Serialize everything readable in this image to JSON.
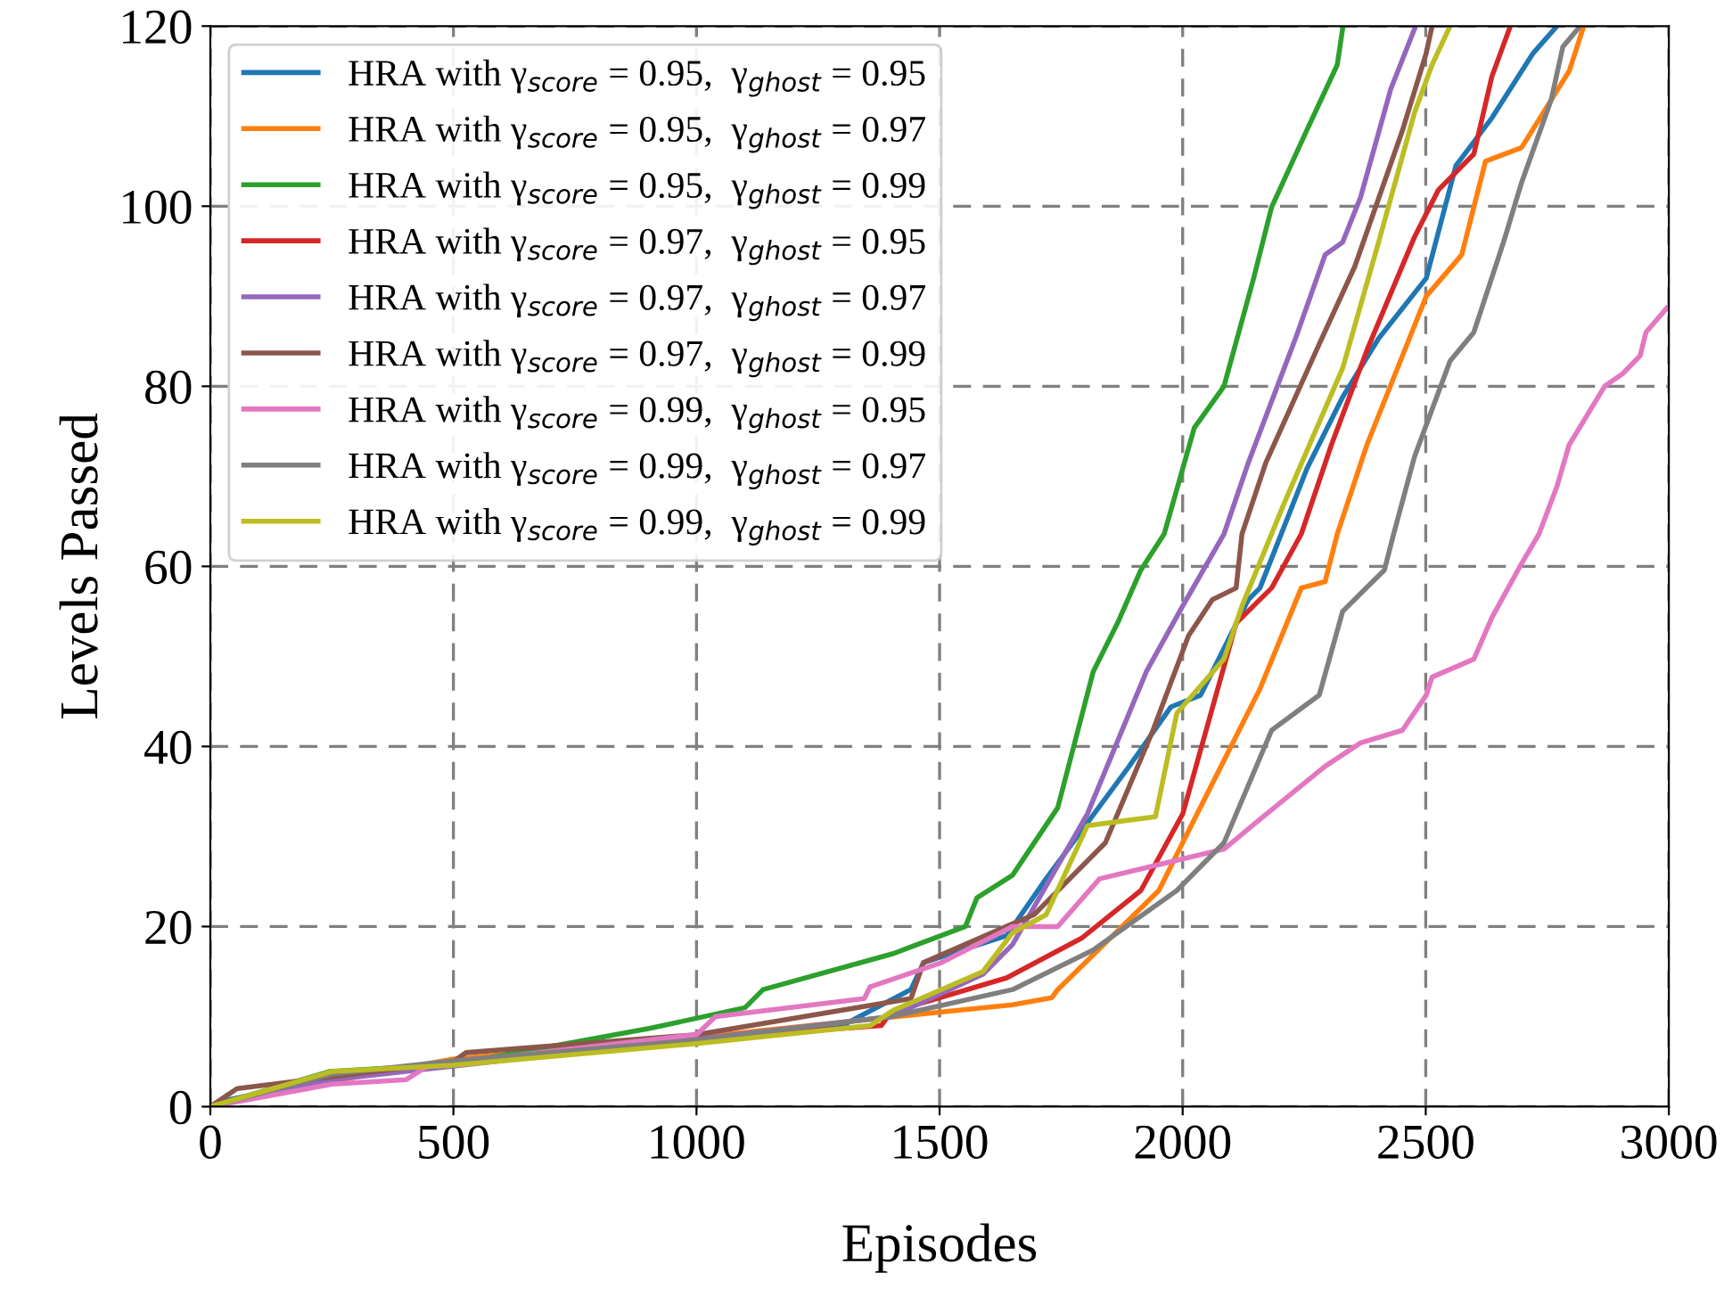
{
  "chart_data": {
    "type": "line",
    "xlabel": "Episodes",
    "ylabel": "Levels Passed",
    "xlim": [
      0,
      3000
    ],
    "ylim": [
      0,
      120
    ],
    "xticks": [
      0,
      500,
      1000,
      1500,
      2000,
      2500,
      3000
    ],
    "yticks": [
      0,
      20,
      40,
      60,
      80,
      100,
      120
    ],
    "grid": true,
    "legend": "top left",
    "line_style": "solid",
    "marker": "none",
    "series": [
      {
        "name": "HRA with γ$_{score}$ = 0.95,  γ$_{ghost}$ = 0.95",
        "color": "#1f77b4",
        "x": [
          0,
          40,
          250,
          500,
          1000,
          1300,
          1441,
          1467,
          1638,
          1719,
          1890,
          1976,
          2037,
          2135,
          2159,
          2256,
          2329,
          2403,
          2501,
          2562,
          2636,
          2721,
          2770
        ],
        "values": [
          0,
          0.8,
          3.2,
          4.8,
          7.5,
          9,
          13,
          16,
          19,
          25.3,
          37.8,
          44.4,
          45.7,
          56.3,
          57.6,
          70.9,
          78.8,
          85.3,
          92,
          104.5,
          109.8,
          117,
          120
        ]
      },
      {
        "name": "HRA with γ$_{score}$ = 0.95,  γ$_{ghost}$ = 0.97",
        "color": "#ff7f0e",
        "x": [
          0,
          80,
          250,
          500,
          1000,
          1500,
          1650,
          1731,
          1743,
          1951,
          2024,
          2159,
          2244,
          2293,
          2318,
          2379,
          2501,
          2574,
          2623,
          2697,
          2795,
          2825
        ],
        "values": [
          0,
          1.2,
          2.8,
          5.3,
          7.7,
          10.5,
          11.3,
          12.1,
          13,
          24,
          31.9,
          46.4,
          57.6,
          58.3,
          63.6,
          73.5,
          90,
          94.6,
          105,
          106.5,
          115,
          120
        ]
      },
      {
        "name": "HRA with γ$_{score}$ = 0.95,  γ$_{ghost}$ = 0.99",
        "color": "#2ca02c",
        "x": [
          0,
          245,
          500,
          905,
          1100,
          1137,
          1405,
          1553,
          1577,
          1650,
          1743,
          1816,
          1866,
          1914,
          1962,
          2024,
          2085,
          2146,
          2183,
          2256,
          2318,
          2329
        ],
        "values": [
          0,
          3.9,
          4.7,
          8.7,
          11,
          13,
          17,
          20,
          23.2,
          25.7,
          33.2,
          48.3,
          53.7,
          59.6,
          63.6,
          75.4,
          80,
          92,
          99.9,
          108.5,
          115.7,
          119.7
        ]
      },
      {
        "name": "HRA with γ$_{score}$ = 0.97,  γ$_{ghost}$ = 0.95",
        "color": "#d62728",
        "x": [
          0,
          250,
          500,
          1000,
          1380,
          1400,
          1638,
          1792,
          1914,
          2000,
          2110,
          2183,
          2244,
          2306,
          2379,
          2477,
          2526,
          2599,
          2636,
          2672
        ],
        "values": [
          0,
          3,
          5,
          7.5,
          9,
          10.5,
          14.3,
          18.7,
          24,
          32.5,
          53.7,
          57.6,
          63.6,
          73.5,
          84,
          96.6,
          101.8,
          105.8,
          114.4,
          119.7
        ]
      },
      {
        "name": "HRA with γ$_{score}$ = 0.97,  γ$_{ghost}$ = 0.97",
        "color": "#9467bd",
        "x": [
          0,
          250,
          500,
          1000,
          1400,
          1589,
          1650,
          1804,
          1926,
          2000,
          2085,
          2135,
          2232,
          2293,
          2329,
          2366,
          2428,
          2477
        ],
        "values": [
          0,
          3,
          4.5,
          7.5,
          10,
          14.7,
          18,
          32.5,
          48.4,
          55.6,
          63.6,
          71.5,
          85.3,
          94.6,
          96,
          101,
          113,
          119.7
        ]
      },
      {
        "name": "HRA with γ$_{score}$ = 0.97,  γ$_{ghost}$ = 0.99",
        "color": "#8c564b",
        "x": [
          0,
          55,
          500,
          526,
          1000,
          1441,
          1467,
          1650,
          1694,
          1841,
          1939,
          2012,
          2061,
          2110,
          2122,
          2171,
          2281,
          2354,
          2452,
          2501,
          2513
        ],
        "values": [
          0,
          2,
          5,
          6,
          8,
          12,
          16,
          20.3,
          21.3,
          29.3,
          41.8,
          52.3,
          56.3,
          57.6,
          63.6,
          71.5,
          84.7,
          93.3,
          108.4,
          117,
          120
        ]
      },
      {
        "name": "HRA with γ$_{score}$ = 0.99,  γ$_{ghost}$ = 0.95",
        "color": "#e377c2",
        "x": [
          0,
          250,
          403,
          450,
          1000,
          1039,
          1345,
          1357,
          1504,
          1650,
          1743,
          1829,
          2085,
          2159,
          2293,
          2366,
          2452,
          2501,
          2513,
          2599,
          2636,
          2697,
          2733,
          2770,
          2795,
          2868,
          2905,
          2941,
          2953,
          2996
        ],
        "values": [
          0,
          2.5,
          3,
          4.6,
          8,
          10,
          12,
          13.3,
          16,
          20,
          20,
          25.3,
          28.6,
          31.9,
          37.8,
          40.4,
          41.8,
          45.7,
          47.7,
          49.7,
          54.3,
          60.3,
          63.6,
          68.9,
          73.5,
          80,
          81.4,
          83.4,
          86,
          88.7
        ]
      },
      {
        "name": "HRA with γ$_{score}$ = 0.99,  γ$_{ghost}$ = 0.97",
        "color": "#7f7f7f",
        "x": [
          0,
          250,
          500,
          1000,
          1400,
          1650,
          1816,
          1988,
          2085,
          2183,
          2281,
          2329,
          2415,
          2434,
          2477,
          2550,
          2599,
          2660,
          2697,
          2758,
          2782,
          2813
        ],
        "values": [
          0,
          3.6,
          5.1,
          7.4,
          10,
          13,
          17.4,
          24,
          29.3,
          41.8,
          45.7,
          55,
          59.6,
          63.6,
          72.2,
          82.8,
          86,
          96,
          102.6,
          111.8,
          117.7,
          119.7
        ]
      },
      {
        "name": "HRA with γ$_{score}$ = 0.99,  γ$_{ghost}$ = 0.99",
        "color": "#bcbd22",
        "x": [
          0,
          250,
          500,
          1000,
          1357,
          1405,
          1589,
          1650,
          1719,
          1804,
          1944,
          1988,
          2085,
          2122,
          2208,
          2329,
          2403,
          2477,
          2513,
          2550
        ],
        "values": [
          0,
          3.9,
          4.6,
          7,
          9,
          10.7,
          15,
          19.3,
          21.3,
          31.2,
          32.2,
          43.7,
          49.7,
          55.6,
          66.9,
          82,
          96,
          110.4,
          115.7,
          120
        ]
      }
    ]
  }
}
